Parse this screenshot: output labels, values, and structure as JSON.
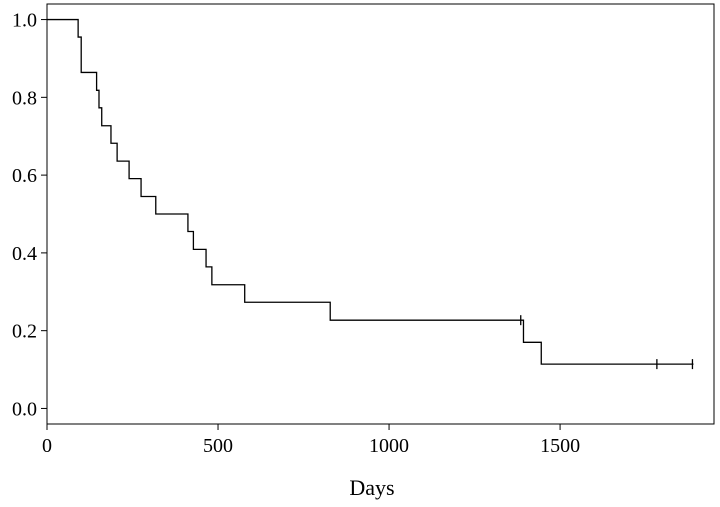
{
  "chart_data": {
    "type": "line",
    "subtype": "step",
    "title": "",
    "xlabel": "Days",
    "ylabel": "",
    "xlim": [
      0,
      1950
    ],
    "ylim": [
      -0.04,
      1.04
    ],
    "x_ticks": [
      0,
      500,
      1000,
      1500
    ],
    "x_tick_labels": [
      "0",
      "500",
      "1000",
      "1500"
    ],
    "y_ticks": [
      0.0,
      0.2,
      0.4,
      0.6,
      0.8,
      1.0
    ],
    "y_tick_labels": [
      "0.0",
      "0.2",
      "0.4",
      "0.6",
      "0.8",
      "1.0"
    ],
    "grid": false,
    "legend": "none",
    "line_color": "#000000",
    "series": [
      {
        "steps": [
          {
            "x": 0,
            "y": 1.0
          },
          {
            "x": 91,
            "y": 0.955
          },
          {
            "x": 100,
            "y": 0.864
          },
          {
            "x": 145,
            "y": 0.818
          },
          {
            "x": 152,
            "y": 0.773
          },
          {
            "x": 160,
            "y": 0.727
          },
          {
            "x": 187,
            "y": 0.682
          },
          {
            "x": 205,
            "y": 0.636
          },
          {
            "x": 240,
            "y": 0.591
          },
          {
            "x": 275,
            "y": 0.545
          },
          {
            "x": 318,
            "y": 0.5
          },
          {
            "x": 412,
            "y": 0.455
          },
          {
            "x": 428,
            "y": 0.409
          },
          {
            "x": 465,
            "y": 0.364
          },
          {
            "x": 482,
            "y": 0.318
          },
          {
            "x": 578,
            "y": 0.273
          },
          {
            "x": 828,
            "y": 0.227
          },
          {
            "x": 1393,
            "y": 0.17
          },
          {
            "x": 1445,
            "y": 0.114
          }
        ],
        "end_x": 1890,
        "censored": [
          {
            "x": 1385,
            "y": 0.227
          },
          {
            "x": 1783,
            "y": 0.114
          },
          {
            "x": 1887,
            "y": 0.114
          }
        ]
      }
    ]
  }
}
